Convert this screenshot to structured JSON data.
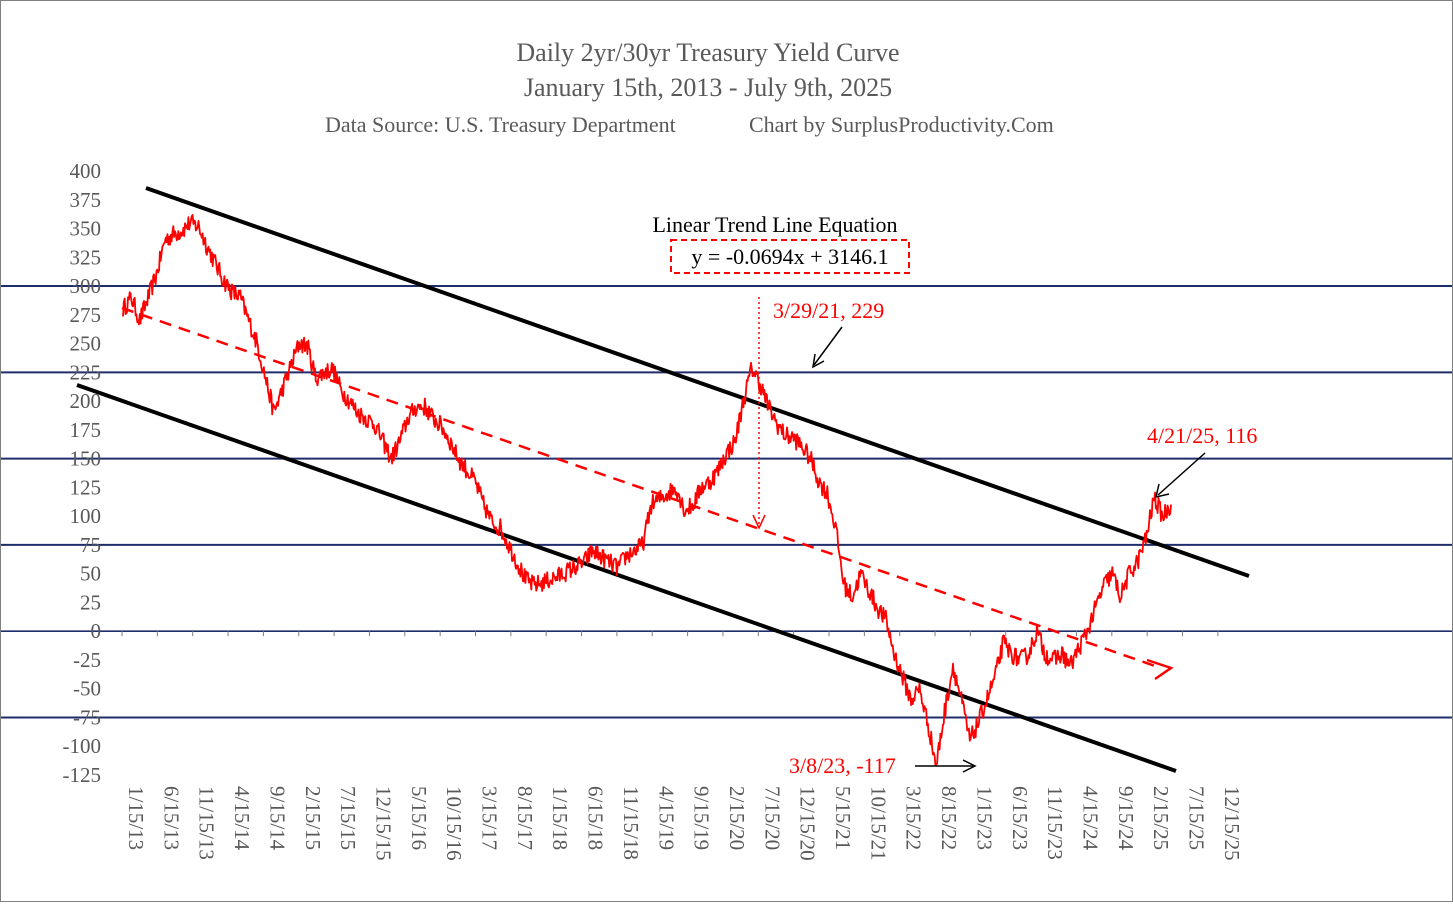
{
  "chart_data": {
    "type": "line",
    "title": "Daily 2yr/30yr Treasury Yield Curve",
    "subtitle": "January 15th, 2013 - July 9th, 2025",
    "source_note": "Data Source: U.S. Treasury Department",
    "credit_note": "Chart by SurplusProductivity.Com",
    "y_ticks": [
      "400",
      "375",
      "350",
      "325",
      "300",
      "275",
      "250",
      "225",
      "200",
      "175",
      "150",
      "125",
      "100",
      "75",
      "50",
      "25",
      "0",
      "-25",
      "-50",
      "-75",
      "-100",
      "-125"
    ],
    "ylim": [
      -125,
      400
    ],
    "x_ticks": [
      "1/15/13",
      "6/15/13",
      "11/15/13",
      "4/15/14",
      "9/15/14",
      "2/15/15",
      "7/15/15",
      "12/15/15",
      "5/15/16",
      "10/15/16",
      "3/15/17",
      "8/15/17",
      "1/15/18",
      "6/15/18",
      "11/15/18",
      "4/15/19",
      "9/15/19",
      "2/15/20",
      "7/15/20",
      "12/15/20",
      "5/15/21",
      "10/15/21",
      "3/15/22",
      "8/15/22",
      "1/15/23",
      "6/15/23",
      "11/15/23",
      "4/15/24",
      "9/15/24",
      "2/15/25",
      "7/15/25",
      "12/15/25"
    ],
    "horizontal_lines": [
      300,
      225,
      150,
      75,
      0,
      -75
    ],
    "series": [
      {
        "values": [
          [
            0,
            280
          ],
          [
            1,
            290
          ],
          [
            2,
            270
          ],
          [
            3,
            290
          ],
          [
            4,
            310
          ],
          [
            5,
            340
          ],
          [
            6,
            345
          ],
          [
            7,
            348
          ],
          [
            8,
            355
          ],
          [
            9,
            352
          ],
          [
            10,
            335
          ],
          [
            11,
            320
          ],
          [
            12,
            305
          ],
          [
            13,
            295
          ],
          [
            14,
            290
          ],
          [
            15,
            270
          ],
          [
            16,
            250
          ],
          [
            17,
            220
          ],
          [
            18,
            190
          ],
          [
            19,
            210
          ],
          [
            20,
            230
          ],
          [
            21,
            250
          ],
          [
            22,
            248
          ],
          [
            23,
            220
          ],
          [
            24,
            225
          ],
          [
            25,
            228
          ],
          [
            26,
            210
          ],
          [
            27,
            200
          ],
          [
            28,
            190
          ],
          [
            29,
            185
          ],
          [
            30,
            180
          ],
          [
            31,
            165
          ],
          [
            32,
            150
          ],
          [
            33,
            165
          ],
          [
            34,
            185
          ],
          [
            35,
            195
          ],
          [
            36,
            195
          ],
          [
            37,
            185
          ],
          [
            38,
            178
          ],
          [
            39,
            165
          ],
          [
            40,
            150
          ],
          [
            41,
            140
          ],
          [
            42,
            130
          ],
          [
            43,
            110
          ],
          [
            44,
            95
          ],
          [
            45,
            90
          ],
          [
            46,
            75
          ],
          [
            47,
            60
          ],
          [
            48,
            45
          ],
          [
            49,
            40
          ],
          [
            50,
            42
          ],
          [
            51,
            45
          ],
          [
            52,
            48
          ],
          [
            53,
            52
          ],
          [
            54,
            56
          ],
          [
            55,
            60
          ],
          [
            56,
            70
          ],
          [
            57,
            65
          ],
          [
            58,
            60
          ],
          [
            59,
            55
          ],
          [
            60,
            65
          ],
          [
            61,
            70
          ],
          [
            62,
            75
          ],
          [
            63,
            110
          ],
          [
            64,
            115
          ],
          [
            65,
            120
          ],
          [
            66,
            125
          ],
          [
            67,
            105
          ],
          [
            68,
            110
          ],
          [
            69,
            125
          ],
          [
            70,
            130
          ],
          [
            71,
            140
          ],
          [
            72,
            155
          ],
          [
            73,
            165
          ],
          [
            74,
            200
          ],
          [
            75,
            229
          ],
          [
            76,
            215
          ],
          [
            77,
            195
          ],
          [
            78,
            180
          ],
          [
            79,
            170
          ],
          [
            80,
            168
          ],
          [
            81,
            160
          ],
          [
            82,
            150
          ],
          [
            83,
            130
          ],
          [
            84,
            120
          ],
          [
            85,
            90
          ],
          [
            86,
            40
          ],
          [
            87,
            30
          ],
          [
            88,
            50
          ],
          [
            89,
            35
          ],
          [
            90,
            20
          ],
          [
            91,
            10
          ],
          [
            92,
            -20
          ],
          [
            93,
            -40
          ],
          [
            94,
            -60
          ],
          [
            95,
            -50
          ],
          [
            96,
            -80
          ],
          [
            97,
            -117
          ],
          [
            98,
            -70
          ],
          [
            99,
            -30
          ],
          [
            100,
            -60
          ],
          [
            101,
            -95
          ],
          [
            102,
            -80
          ],
          [
            103,
            -60
          ],
          [
            104,
            -40
          ],
          [
            105,
            -10
          ],
          [
            106,
            -20
          ],
          [
            107,
            -25
          ],
          [
            108,
            -20
          ],
          [
            109,
            0
          ],
          [
            110,
            -20
          ],
          [
            111,
            -25
          ],
          [
            112,
            -20
          ],
          [
            113,
            -30
          ],
          [
            114,
            -15
          ],
          [
            115,
            0
          ],
          [
            116,
            20
          ],
          [
            117,
            40
          ],
          [
            118,
            50
          ],
          [
            119,
            30
          ],
          [
            120,
            50
          ],
          [
            121,
            60
          ],
          [
            122,
            80
          ],
          [
            123,
            116
          ],
          [
            124,
            100
          ],
          [
            125,
            110
          ]
        ]
      }
    ],
    "trend_equation_label": "Linear Trend Line Equation",
    "trend_equation": "y = -0.0694x  + 3146.1",
    "annotations": [
      {
        "text": "3/29/21, 229"
      },
      {
        "text": "4/21/25, 116"
      },
      {
        "text": "3/8/23, -117"
      }
    ],
    "colors": {
      "series": "#ff0000",
      "hline": "#1f2d6b",
      "channel": "#000000",
      "trend": "#ff0000",
      "axis_text": "#595959"
    }
  }
}
